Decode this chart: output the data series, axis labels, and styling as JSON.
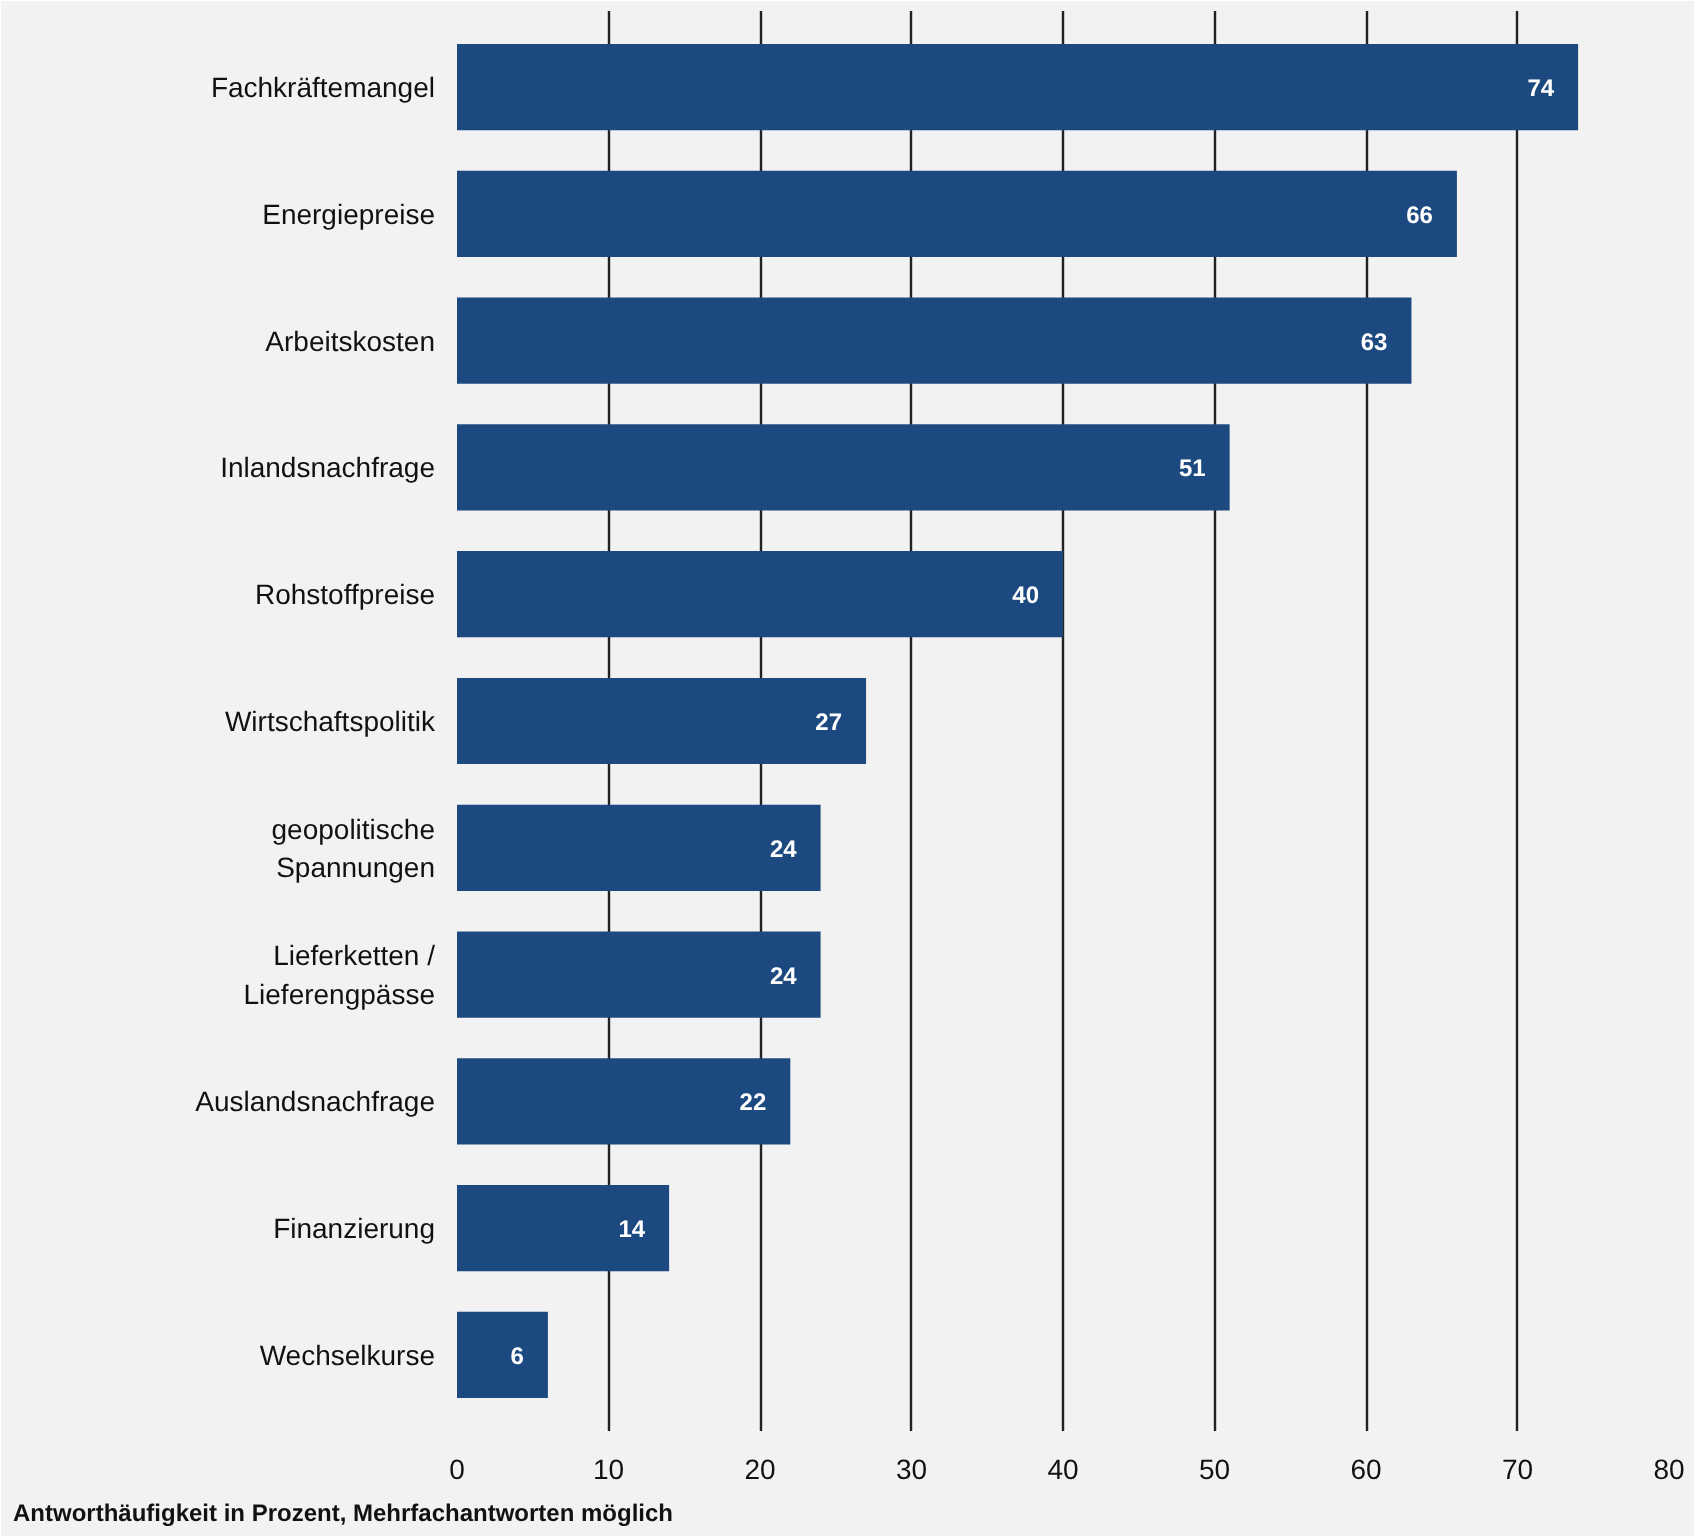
{
  "chart_data": {
    "type": "bar",
    "orientation": "horizontal",
    "categories": [
      "Fachkräftemangel",
      "Energiepreise",
      "Arbeitskosten",
      "Inlandsnachfrage",
      "Rohstoffpreise",
      "Wirtschaftspolitik",
      "geopolitische\nSpannungen",
      "Lieferketten /\nLieferengpässe",
      "Auslandsnachfrage",
      "Finanzierung",
      "Wechselkurse"
    ],
    "values": [
      74,
      66,
      63,
      51,
      40,
      27,
      24,
      24,
      22,
      14,
      6
    ],
    "color": "#1c4a80",
    "xlim": [
      0,
      80
    ],
    "xticks": [
      0,
      10,
      20,
      30,
      40,
      50,
      60,
      70,
      80
    ],
    "grid": "x",
    "data_labels": true,
    "annotations": [
      "Antworthäufigkeit in Prozent, Mehrfachantworten möglich"
    ]
  }
}
